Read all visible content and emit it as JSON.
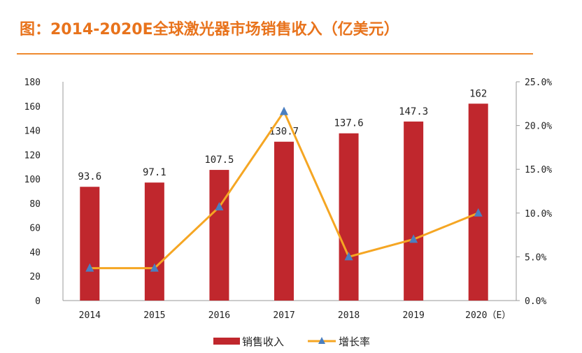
{
  "title": "图：2014-2020E全球激光器市场销售收入（亿美元）",
  "colors": {
    "title": "#e8731c",
    "bar": "#c0272d",
    "line": "#f5a623",
    "marker": "#4a7fc1"
  },
  "chart_data": {
    "type": "bar",
    "categories": [
      "2014",
      "2015",
      "2016",
      "2017",
      "2018",
      "2019",
      "2020（E）"
    ],
    "series": [
      {
        "name": "销售收入",
        "type": "bar",
        "axis": "left",
        "values": [
          93.6,
          97.1,
          107.5,
          130.7,
          137.6,
          147.3,
          162
        ],
        "labels": [
          "93.6",
          "97.1",
          "107.5",
          "130.7",
          "137.6",
          "147.3",
          "162"
        ]
      },
      {
        "name": "增长率",
        "type": "line",
        "axis": "right",
        "values": [
          3.7,
          3.7,
          10.7,
          21.6,
          5.0,
          7.0,
          10.0
        ]
      }
    ],
    "left_axis": {
      "range": [
        0,
        180
      ],
      "ticks": [
        "0",
        "20",
        "40",
        "60",
        "80",
        "100",
        "120",
        "140",
        "160",
        "180"
      ]
    },
    "right_axis": {
      "range": [
        0,
        25
      ],
      "ticks": [
        "0.0%",
        "5.0%",
        "10.0%",
        "15.0%",
        "20.0%",
        "25.0%"
      ]
    },
    "grid": false,
    "legend": "bottom"
  }
}
